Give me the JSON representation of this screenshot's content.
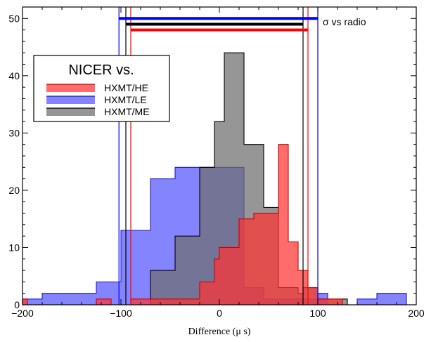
{
  "chart_data": {
    "type": "histogram",
    "xlabel": "Difference (μ s)",
    "xlim": [
      -200,
      200
    ],
    "ylim": [
      0,
      52
    ],
    "x_ticks": [
      -200,
      -100,
      0,
      100,
      200
    ],
    "y_ticks": [
      0,
      10,
      20,
      30,
      40,
      50
    ],
    "legend": {
      "title": "NICER vs.",
      "placement": "upper-left",
      "entries": [
        "HXMT/HE",
        "HXMT/LE",
        "HXMT/ME"
      ]
    },
    "annotation": "σ vs radio",
    "series": [
      {
        "name": "HXMT/LE",
        "fill": "#5555ff",
        "edge": "#1c1cbf",
        "bins": [
          [
            -230,
            -180,
            1
          ],
          [
            -180,
            -125,
            2
          ],
          [
            -125,
            -100,
            4
          ],
          [
            -100,
            -70,
            13
          ],
          [
            -70,
            -45,
            22
          ],
          [
            -45,
            -20,
            24
          ],
          [
            -20,
            25,
            24
          ],
          [
            25,
            45,
            3
          ],
          [
            45,
            65,
            1
          ],
          [
            65,
            90,
            1
          ],
          [
            90,
            100,
            1
          ],
          [
            100,
            110,
            2
          ],
          [
            110,
            140,
            0
          ],
          [
            140,
            160,
            1
          ],
          [
            160,
            190,
            2
          ],
          [
            190,
            200,
            0
          ]
        ]
      },
      {
        "name": "HXMT/ME",
        "fill": "#6e6e6e",
        "edge": "#000000",
        "bins": [
          [
            -100,
            -70,
            0
          ],
          [
            -70,
            -45,
            6
          ],
          [
            -45,
            -20,
            12
          ],
          [
            -20,
            -5,
            24
          ],
          [
            -5,
            5,
            32
          ],
          [
            5,
            25,
            44
          ],
          [
            25,
            45,
            28
          ],
          [
            45,
            60,
            17
          ],
          [
            60,
            80,
            3
          ],
          [
            80,
            85,
            2
          ],
          [
            85,
            100,
            3
          ],
          [
            100,
            130,
            1
          ],
          [
            130,
            140,
            0
          ]
        ]
      },
      {
        "name": "HXMT/HE",
        "fill": "#ff3333",
        "edge": "#cc0000",
        "bins": [
          [
            -230,
            -195,
            1
          ],
          [
            -195,
            -125,
            0
          ],
          [
            -125,
            -110,
            1
          ],
          [
            -110,
            -90,
            0
          ],
          [
            -90,
            -80,
            1
          ],
          [
            -80,
            -45,
            1
          ],
          [
            -45,
            -20,
            1
          ],
          [
            -20,
            -5,
            4
          ],
          [
            -5,
            0,
            8
          ],
          [
            0,
            20,
            10
          ],
          [
            20,
            35,
            15
          ],
          [
            35,
            55,
            16
          ],
          [
            55,
            60,
            16
          ],
          [
            60,
            70,
            28
          ],
          [
            70,
            80,
            11
          ],
          [
            80,
            90,
            6
          ],
          [
            90,
            100,
            3
          ],
          [
            100,
            125,
            1
          ],
          [
            125,
            130,
            0
          ]
        ]
      }
    ],
    "top_bars": [
      {
        "name": "HXMT/LE",
        "color": "#0000ff",
        "y": 50,
        "x0": -102,
        "x1": 100
      },
      {
        "name": "HXMT/ME",
        "color": "#000000",
        "y": 49,
        "x0": -95,
        "x1": 85
      },
      {
        "name": "HXMT/HE",
        "color": "#ff0000",
        "y": 48,
        "x0": -90,
        "x1": 90
      }
    ],
    "vertical_lines": [
      {
        "name": "HXMT/LE",
        "color": "#0000ff",
        "x": [
          -102,
          100
        ]
      },
      {
        "name": "HXMT/ME",
        "color": "#000000",
        "x": [
          -95,
          85
        ]
      },
      {
        "name": "HXMT/HE",
        "color": "#ff0000",
        "x": [
          -90,
          90
        ]
      }
    ]
  }
}
